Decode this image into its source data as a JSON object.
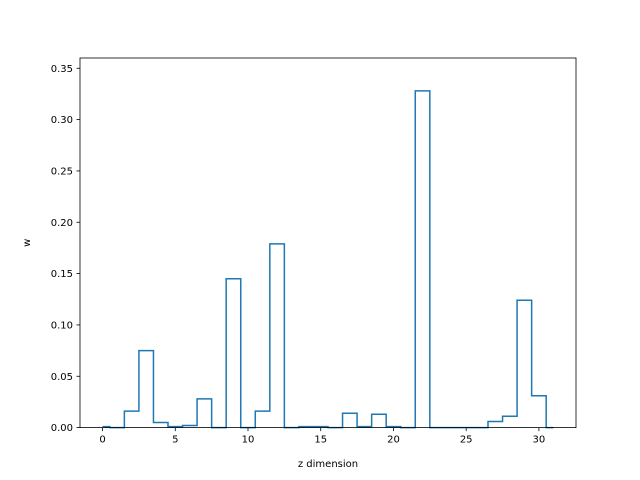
{
  "chart_data": {
    "type": "step",
    "xlabel": "z dimension",
    "ylabel": "w",
    "xlim": [
      -1.55,
      32.55
    ],
    "ylim": [
      0,
      0.36
    ],
    "x_ticks": [
      0,
      5,
      10,
      15,
      20,
      25,
      30
    ],
    "y_ticks": [
      0.0,
      0.05,
      0.1,
      0.15,
      0.2,
      0.25,
      0.3,
      0.35
    ],
    "x_tick_labels": [
      "0",
      "5",
      "10",
      "15",
      "20",
      "25",
      "30"
    ],
    "y_tick_labels": [
      "0.00",
      "0.05",
      "0.10",
      "0.15",
      "0.20",
      "0.25",
      "0.30",
      "0.35"
    ],
    "step_where": "mid",
    "x": [
      0,
      1,
      2,
      3,
      4,
      5,
      6,
      7,
      8,
      9,
      10,
      11,
      12,
      13,
      14,
      15,
      16,
      17,
      18,
      19,
      20,
      21,
      22,
      23,
      24,
      25,
      26,
      27,
      28,
      29,
      30,
      31
    ],
    "values": [
      0.001,
      0.0,
      0.016,
      0.075,
      0.005,
      0.001,
      0.002,
      0.028,
      0.0,
      0.145,
      0.0,
      0.016,
      0.179,
      0.0,
      0.001,
      0.001,
      0.0,
      0.014,
      0.001,
      0.013,
      0.001,
      0.0,
      0.328,
      0.0,
      0.0,
      0.0,
      0.0,
      0.006,
      0.011,
      0.124,
      0.031,
      0.0
    ],
    "grid": false,
    "color": "#1f77b4"
  }
}
